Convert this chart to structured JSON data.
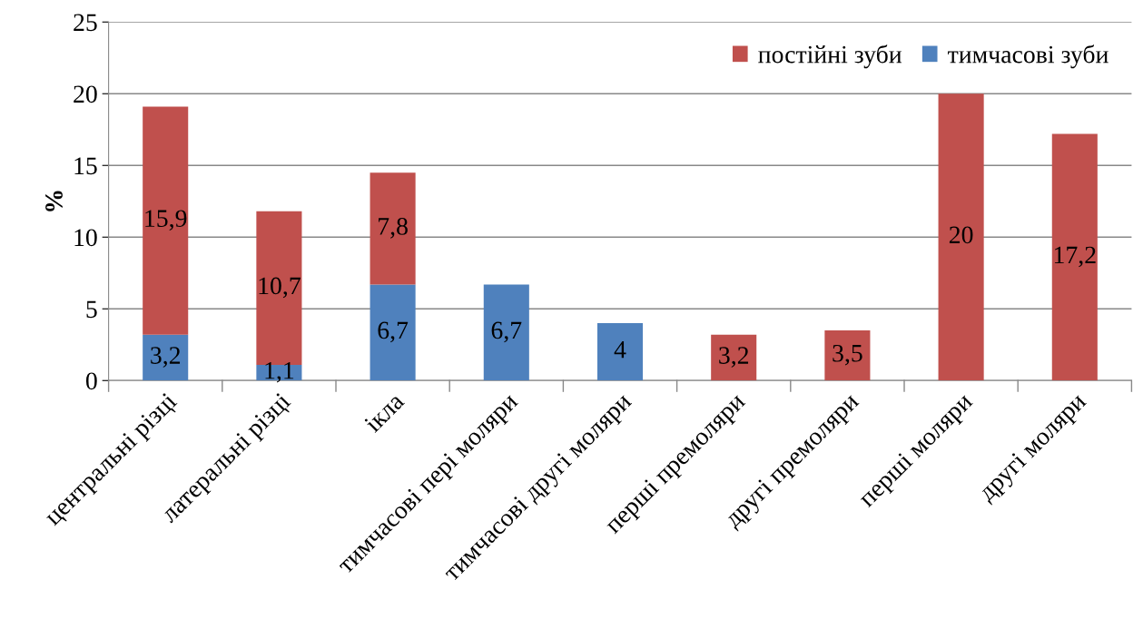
{
  "chart_data": {
    "type": "bar",
    "stacked": true,
    "ylabel": "%",
    "categories": [
      "центральні різці",
      "латеральні різці",
      "ікла",
      "тимчасові пері моляри",
      "тимчасові другі моляри",
      "перші премоляри",
      "другі премоляри",
      "перші моляри",
      "другі моляри"
    ],
    "series": [
      {
        "name": "тимчасові зуби",
        "color": "#4f81bd",
        "values": [
          3.2,
          1.1,
          6.7,
          6.7,
          4,
          null,
          null,
          null,
          null
        ],
        "value_labels": [
          "3,2",
          "1,1",
          "6,7",
          "6,7",
          "4",
          null,
          null,
          null,
          null
        ]
      },
      {
        "name": "постійні зуби",
        "color": "#c0504d",
        "values": [
          15.9,
          10.7,
          7.8,
          null,
          null,
          3.2,
          3.5,
          20,
          17.2
        ],
        "value_labels": [
          "15,9",
          "10,7",
          "7,8",
          null,
          null,
          "3,2",
          "3,5",
          "20",
          "17,2"
        ]
      }
    ],
    "ylim": [
      0,
      25
    ],
    "yticks": [
      0,
      5,
      10,
      15,
      20,
      25
    ],
    "grid": "y",
    "legend": "top right"
  }
}
